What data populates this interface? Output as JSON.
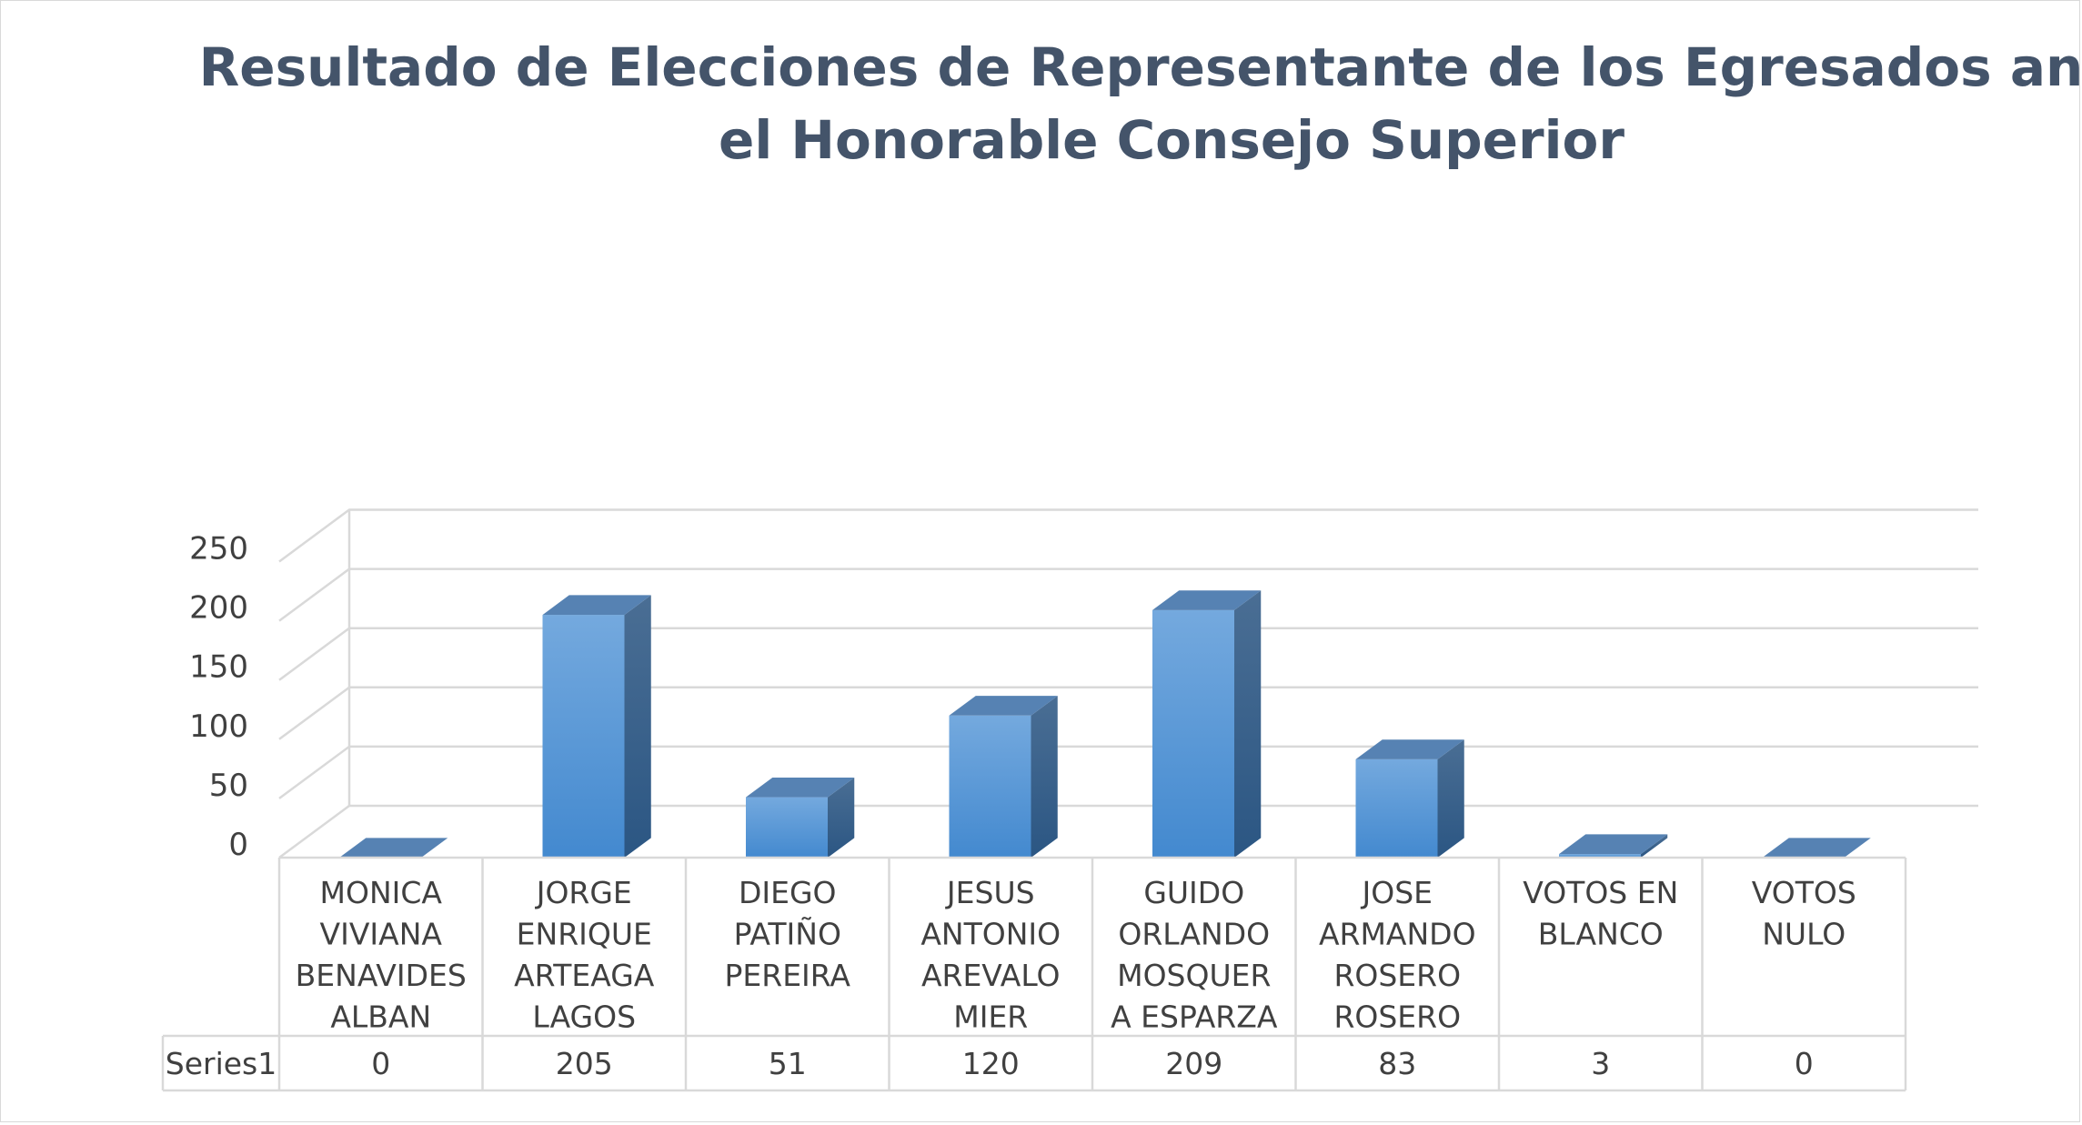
{
  "chart_data": {
    "type": "bar",
    "style": "3d-column-with-data-table",
    "title": "Resultado de Elecciones de Representante de los Egresados ante el Honorable Consejo Superior",
    "title_lines": [
      "Resultado de Elecciones de Representante de los Egresados ante",
      "el Honorable Consejo Superior"
    ],
    "categories": [
      [
        "MONICA",
        "VIVIANA",
        "BENAVIDES",
        "ALBAN"
      ],
      [
        "JORGE",
        "ENRIQUE",
        "ARTEAGA",
        "LAGOS"
      ],
      [
        "DIEGO",
        "PATIÑO",
        "PEREIRA"
      ],
      [
        "JESUS",
        "ANTONIO",
        "AREVALO",
        "MIER"
      ],
      [
        "GUIDO",
        "ORLANDO",
        "MOSQUER",
        "A ESPARZA"
      ],
      [
        "JOSE",
        "ARMANDO",
        "ROSERO",
        "ROSERO"
      ],
      [
        "VOTOS EN",
        "BLANCO"
      ],
      [
        "VOTOS",
        "NULO"
      ]
    ],
    "series": [
      {
        "name": "Series1",
        "values": [
          0,
          205,
          51,
          120,
          209,
          83,
          3,
          0
        ]
      }
    ],
    "ylim": [
      0,
      250
    ],
    "yticks": [
      0,
      50,
      100,
      150,
      200,
      250
    ],
    "xlabel": "",
    "ylabel": "",
    "grid": true,
    "legend": "none",
    "data_table": true
  },
  "colors": {
    "title": "#44546a",
    "text": "#404040",
    "grid": "#d9d9d9",
    "bar_front_top": "#74a9de",
    "bar_front_bottom": "#4389cf",
    "bar_side_top": "#4a6e94",
    "bar_side_bottom": "#2b5683",
    "bar_top": "#5682b3"
  }
}
